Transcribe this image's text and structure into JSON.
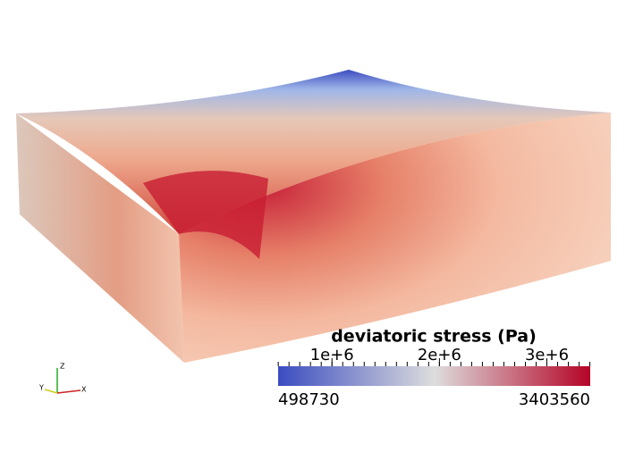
{
  "colorbar": {
    "title": "deviatoric stress (Pa)",
    "range": [
      498730,
      3403560
    ],
    "ticks": [
      {
        "value": 1000000,
        "label": "1e+6"
      },
      {
        "value": 2000000,
        "label": "2e+6"
      },
      {
        "value": 3000000,
        "label": "3e+6"
      }
    ],
    "minor_ticks": [
      500000,
      600000,
      700000,
      800000,
      900000,
      1000000,
      1100000,
      1200000,
      1300000,
      1400000,
      1500000,
      1600000,
      1700000,
      1800000,
      1900000,
      2000000,
      2100000,
      2200000,
      2300000,
      2400000,
      2500000,
      2600000,
      2700000,
      2800000,
      2900000,
      3000000,
      3100000,
      3200000,
      3300000,
      3400000
    ],
    "colors": [
      "#3b4cc0",
      "#dddddd",
      "#b40426"
    ]
  },
  "axes_triad": {
    "x": "X",
    "y": "Y",
    "z": "Z"
  }
}
